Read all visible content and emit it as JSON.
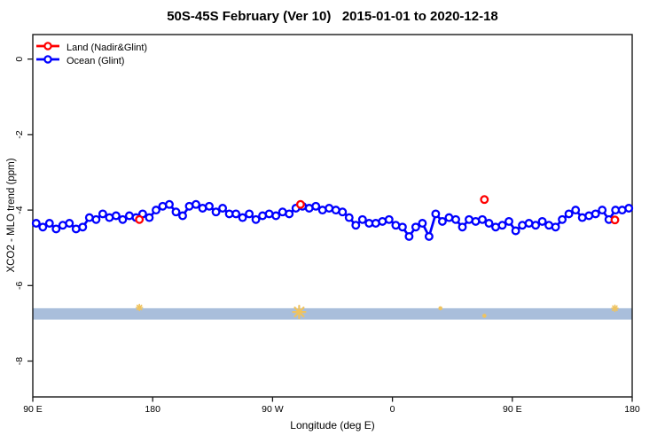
{
  "title": "50S-45S February (Ver 10)   2015-01-01 to 2020-12-18",
  "legend": {
    "items": [
      {
        "id": "land",
        "label": "Land (Nadir&Glint)",
        "color": "#FF0000"
      },
      {
        "id": "ocean",
        "label": "Ocean (Glint)",
        "color": "#0000FF"
      }
    ]
  },
  "axes": {
    "x": {
      "label": "Longitude (deg E)"
    },
    "y": {
      "label": "XCO2 - MLO trend (ppm)"
    }
  },
  "colors": {
    "ocean": "#0000FF",
    "land": "#FF0000",
    "band": "#A9BEDB",
    "band_marker": "#EFC35F",
    "axis": "#1A1A1A",
    "background": "#FFFFFF"
  },
  "chart_data": {
    "type": "line",
    "title": "50S-45S February (Ver 10)   2015-01-01 to 2020-12-18",
    "xlabel": "Longitude (deg E)",
    "ylabel": "XCO2 - MLO trend (ppm)",
    "xlim": [
      90,
      540
    ],
    "ylim": [
      0.65,
      -8.95
    ],
    "grid": false,
    "legend_position": "top-left",
    "x_ticks": [
      {
        "deg": 90,
        "label": "90 E"
      },
      {
        "deg": 180,
        "label": "180"
      },
      {
        "deg": 270,
        "label": "90 W"
      },
      {
        "deg": 360,
        "label": "0"
      },
      {
        "deg": 450,
        "label": "90 E"
      },
      {
        "deg": 540,
        "label": "180"
      }
    ],
    "y_ticks": [
      {
        "value": 0,
        "label": "0"
      },
      {
        "value": -2,
        "label": "-2"
      },
      {
        "value": -4,
        "label": "-4"
      },
      {
        "value": -6,
        "label": "-6"
      },
      {
        "value": -8,
        "label": "-8"
      }
    ],
    "series": [
      {
        "name": "Ocean (Glint)",
        "color": "#0000FF",
        "marker": "open-circle",
        "line": true,
        "x": [
          92.5,
          97.5,
          102.5,
          107.5,
          112.5,
          117.5,
          122.5,
          127.5,
          132.5,
          137.5,
          142.5,
          147.5,
          152.5,
          157.5,
          162.5,
          167.5,
          172.5,
          177.5,
          182.5,
          187.5,
          192.5,
          197.5,
          202.5,
          207.5,
          212.5,
          217.5,
          222.5,
          227.5,
          232.5,
          237.5,
          242.5,
          247.5,
          252.5,
          257.5,
          262.5,
          267.5,
          272.5,
          277.5,
          282.5,
          287.5,
          292.5,
          297.5,
          302.5,
          307.5,
          312.5,
          317.5,
          322.5,
          327.5,
          332.5,
          337.5,
          342.5,
          347.5,
          352.5,
          357.5,
          362.5,
          367.5,
          372.5,
          377.5,
          382.5,
          387.5,
          392.5,
          397.5,
          402.5,
          407.5,
          412.5,
          417.5,
          422.5,
          427.5,
          432.5,
          437.5,
          442.5,
          447.5,
          452.5,
          457.5,
          462.5,
          467.5,
          472.5,
          477.5,
          482.5,
          487.5,
          492.5,
          497.5,
          502.5,
          507.5,
          512.5,
          517.5,
          522.5,
          527.5,
          532.5,
          537.5
        ],
        "y": [
          -4.35,
          -4.45,
          -4.35,
          -4.5,
          -4.4,
          -4.35,
          -4.5,
          -4.45,
          -4.2,
          -4.25,
          -4.1,
          -4.2,
          -4.15,
          -4.25,
          -4.15,
          -4.2,
          -4.1,
          -4.2,
          -4.0,
          -3.9,
          -3.85,
          -4.05,
          -4.15,
          -3.9,
          -3.85,
          -3.95,
          -3.9,
          -4.05,
          -3.95,
          -4.1,
          -4.1,
          -4.2,
          -4.1,
          -4.25,
          -4.15,
          -4.1,
          -4.15,
          -4.05,
          -4.1,
          -3.95,
          -3.9,
          -3.95,
          -3.9,
          -4.0,
          -3.95,
          -4.0,
          -4.05,
          -4.2,
          -4.4,
          -4.25,
          -4.35,
          -4.35,
          -4.3,
          -4.25,
          -4.4,
          -4.45,
          -4.7,
          -4.45,
          -4.35,
          -4.7,
          -4.1,
          -4.3,
          -4.2,
          -4.25,
          -4.45,
          -4.25,
          -4.3,
          -4.25,
          -4.35,
          -4.45,
          -4.4,
          -4.3,
          -4.55,
          -4.4,
          -4.35,
          -4.4,
          -4.3,
          -4.4,
          -4.45,
          -4.25,
          -4.1,
          -4.0,
          -4.2,
          -4.15,
          -4.1,
          -4.0,
          -4.25,
          -4.0,
          -4.0,
          -3.95
        ]
      },
      {
        "name": "Land (Nadir&Glint)",
        "color": "#FF0000",
        "marker": "open-circle",
        "line": false,
        "x": [
          170,
          291,
          429,
          527
        ],
        "y": [
          -4.25,
          -3.85,
          -3.72,
          -4.26
        ]
      }
    ],
    "band": {
      "y_top": -6.6,
      "y_bottom": -6.9,
      "color": "#A9BEDB"
    },
    "band_markers": [
      {
        "x": 170,
        "y": -6.58,
        "size": "small"
      },
      {
        "x": 290,
        "y": -6.7,
        "size": "large"
      },
      {
        "x": 396,
        "y": -6.6,
        "size": "dot"
      },
      {
        "x": 429,
        "y": -6.8,
        "size": "dot"
      },
      {
        "x": 527,
        "y": -6.6,
        "size": "small"
      }
    ]
  }
}
